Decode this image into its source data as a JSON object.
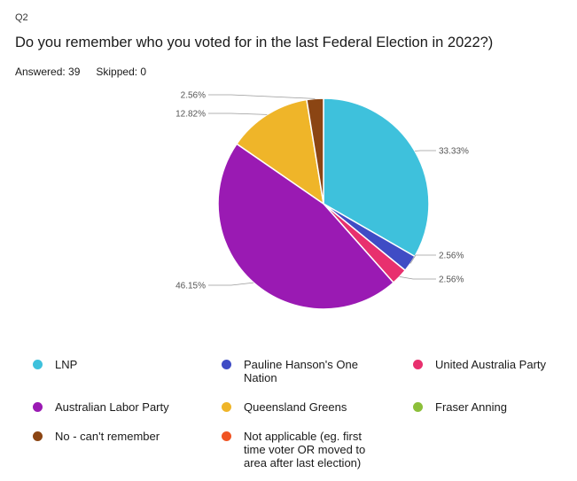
{
  "question": {
    "number": "Q2",
    "title": "Do you remember who you voted for in the last Federal Election in 2022?)",
    "answered": "Answered: 39",
    "skipped": "Skipped: 0"
  },
  "chart_data": {
    "type": "pie",
    "title": "",
    "categories": [
      "LNP",
      "Pauline Hanson's One Nation",
      "United Australia Party",
      "Australian Labor Party",
      "Queensland Greens",
      "Fraser Anning",
      "No - can't remember",
      "Not applicable (eg. first time voter OR moved to area after last election)"
    ],
    "values": [
      33.33,
      2.56,
      2.56,
      46.15,
      12.82,
      0,
      2.56,
      0
    ],
    "value_labels": [
      "33.33%",
      "2.56%",
      "2.56%",
      "46.15%",
      "12.82%",
      "",
      "2.56%",
      ""
    ],
    "colors": [
      "#3ec1dc",
      "#3f4cc5",
      "#e8306e",
      "#9a1ab3",
      "#efb529",
      "#8cbf3a",
      "#8b4513",
      "#f05423"
    ],
    "legend_position": "bottom"
  }
}
